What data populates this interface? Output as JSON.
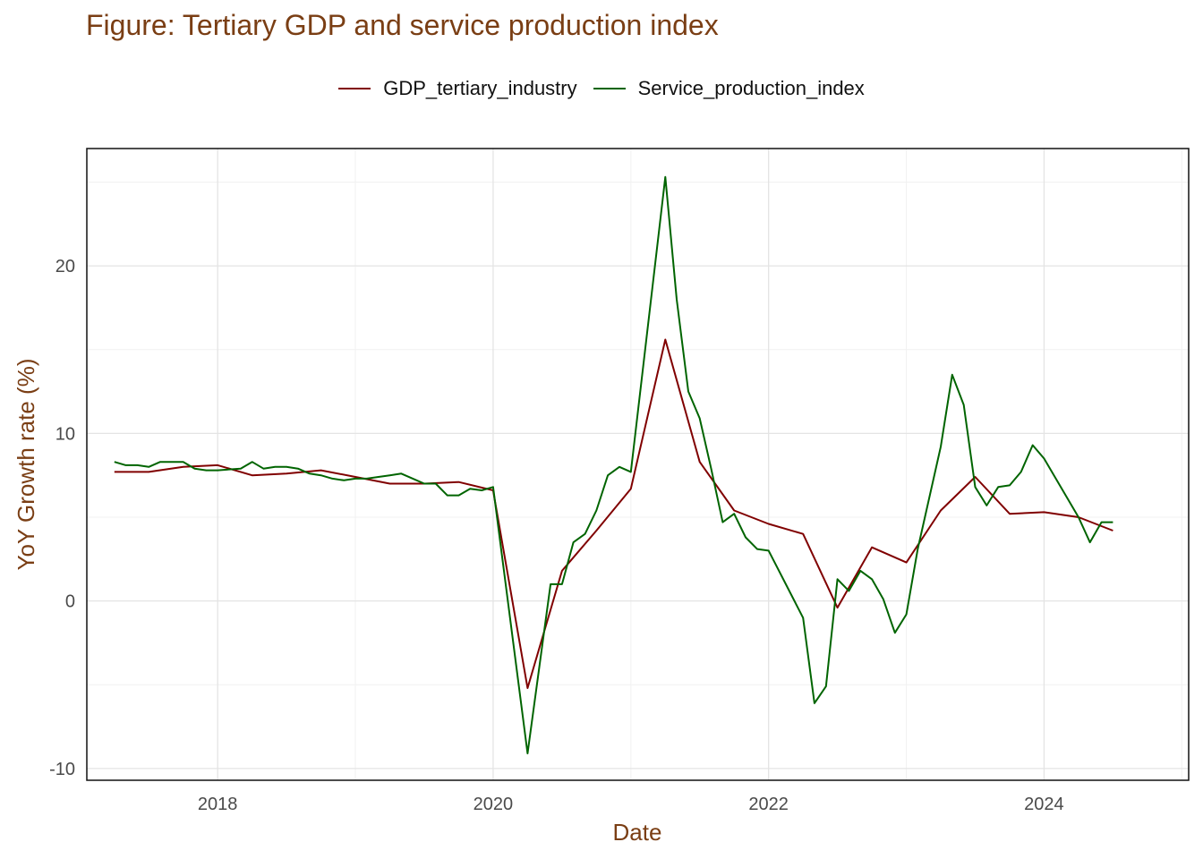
{
  "chart_data": {
    "type": "line",
    "title": "Figure: Tertiary GDP and service production index",
    "xlabel": "Date",
    "ylabel": "YoY Growth rate (%)",
    "xlim": [
      2017.05,
      2025.05
    ],
    "ylim": [
      -10.7,
      27
    ],
    "x_ticks": [
      2018,
      2020,
      2022,
      2024
    ],
    "y_ticks": [
      -10,
      0,
      10,
      20
    ],
    "grid": true,
    "legend_position": "top-center",
    "series": [
      {
        "name": "GDP_tertiary_industry",
        "color": "#800000",
        "points": [
          [
            2017.25,
            7.7
          ],
          [
            2017.5,
            7.7
          ],
          [
            2017.75,
            8.0
          ],
          [
            2018.0,
            8.1
          ],
          [
            2018.25,
            7.5
          ],
          [
            2018.5,
            7.6
          ],
          [
            2018.75,
            7.8
          ],
          [
            2019.0,
            7.4
          ],
          [
            2019.25,
            7.0
          ],
          [
            2019.5,
            7.0
          ],
          [
            2019.75,
            7.1
          ],
          [
            2020.0,
            6.6
          ],
          [
            2020.25,
            -5.2
          ],
          [
            2020.5,
            1.8
          ],
          [
            2020.75,
            4.2
          ],
          [
            2021.0,
            6.7
          ],
          [
            2021.25,
            15.6
          ],
          [
            2021.5,
            8.3
          ],
          [
            2021.75,
            5.4
          ],
          [
            2022.0,
            4.6
          ],
          [
            2022.25,
            4.0
          ],
          [
            2022.5,
            -0.4
          ],
          [
            2022.75,
            3.2
          ],
          [
            2023.0,
            2.3
          ],
          [
            2023.25,
            5.4
          ],
          [
            2023.5,
            7.4
          ],
          [
            2023.75,
            5.2
          ],
          [
            2024.0,
            5.3
          ],
          [
            2024.25,
            5.0
          ],
          [
            2024.5,
            4.2
          ]
        ]
      },
      {
        "name": "Service_production_index",
        "color": "#006400",
        "points": [
          [
            2017.25,
            8.3
          ],
          [
            2017.333,
            8.1
          ],
          [
            2017.417,
            8.1
          ],
          [
            2017.5,
            8.0
          ],
          [
            2017.583,
            8.3
          ],
          [
            2017.667,
            8.3
          ],
          [
            2017.75,
            8.3
          ],
          [
            2017.833,
            7.9
          ],
          [
            2017.917,
            7.8
          ],
          [
            2018.0,
            7.8
          ],
          [
            2018.167,
            7.9
          ],
          [
            2018.25,
            8.3
          ],
          [
            2018.333,
            7.9
          ],
          [
            2018.417,
            8.0
          ],
          [
            2018.5,
            8.0
          ],
          [
            2018.583,
            7.9
          ],
          [
            2018.667,
            7.6
          ],
          [
            2018.75,
            7.5
          ],
          [
            2018.833,
            7.3
          ],
          [
            2018.917,
            7.2
          ],
          [
            2019.0,
            7.3
          ],
          [
            2019.083,
            7.3
          ],
          [
            2019.167,
            7.4
          ],
          [
            2019.25,
            7.5
          ],
          [
            2019.333,
            7.6
          ],
          [
            2019.417,
            7.3
          ],
          [
            2019.5,
            7.0
          ],
          [
            2019.583,
            7.0
          ],
          [
            2019.667,
            6.3
          ],
          [
            2019.75,
            6.3
          ],
          [
            2019.833,
            6.7
          ],
          [
            2019.917,
            6.6
          ],
          [
            2020.0,
            6.8
          ],
          [
            2020.25,
            -9.1
          ],
          [
            2020.417,
            1.0
          ],
          [
            2020.5,
            1.0
          ],
          [
            2020.583,
            3.5
          ],
          [
            2020.667,
            4.0
          ],
          [
            2020.75,
            5.4
          ],
          [
            2020.833,
            7.5
          ],
          [
            2020.917,
            8.0
          ],
          [
            2021.0,
            7.7
          ],
          [
            2021.25,
            25.3
          ],
          [
            2021.333,
            18.0
          ],
          [
            2021.417,
            12.5
          ],
          [
            2021.5,
            10.9
          ],
          [
            2021.583,
            7.9
          ],
          [
            2021.667,
            4.7
          ],
          [
            2021.75,
            5.2
          ],
          [
            2021.833,
            3.8
          ],
          [
            2021.917,
            3.1
          ],
          [
            2022.0,
            3.0
          ],
          [
            2022.25,
            -1.0
          ],
          [
            2022.333,
            -6.1
          ],
          [
            2022.417,
            -5.1
          ],
          [
            2022.5,
            1.3
          ],
          [
            2022.583,
            0.6
          ],
          [
            2022.667,
            1.8
          ],
          [
            2022.75,
            1.3
          ],
          [
            2022.833,
            0.1
          ],
          [
            2022.917,
            -1.9
          ],
          [
            2023.0,
            -0.8
          ],
          [
            2023.083,
            3.1
          ],
          [
            2023.25,
            9.2
          ],
          [
            2023.333,
            13.5
          ],
          [
            2023.417,
            11.7
          ],
          [
            2023.5,
            6.8
          ],
          [
            2023.583,
            5.7
          ],
          [
            2023.667,
            6.8
          ],
          [
            2023.75,
            6.9
          ],
          [
            2023.833,
            7.7
          ],
          [
            2023.917,
            9.3
          ],
          [
            2024.0,
            8.5
          ],
          [
            2024.25,
            5.0
          ],
          [
            2024.333,
            3.5
          ],
          [
            2024.417,
            4.7
          ],
          [
            2024.5,
            4.7
          ]
        ]
      }
    ]
  }
}
